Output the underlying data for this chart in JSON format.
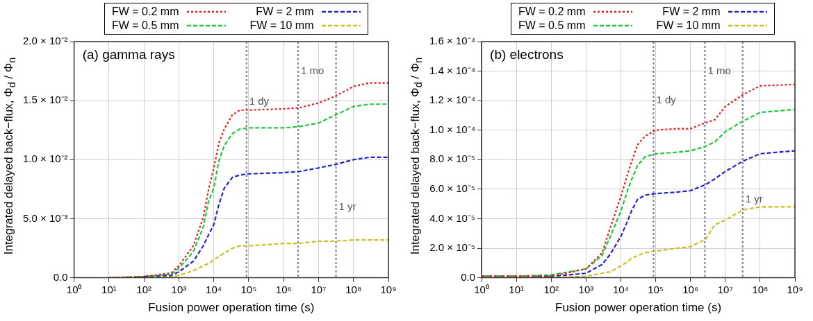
{
  "chart_data": [
    {
      "type": "line",
      "title": "(a) gamma rays",
      "xlabel": "Fusion power operation time (s)",
      "ylabel": "Integrated delayed back−flux, Φ$_{d}$ / Φ$_{n}$",
      "log": "x",
      "grid": true,
      "legend": "top",
      "marker": "none",
      "x": [
        10,
        100,
        600,
        1000,
        2600,
        5000,
        7000,
        10000,
        14000,
        20000,
        34000,
        56000,
        100000,
        1000000,
        2800000,
        10000000,
        31000000,
        100000000,
        280000000,
        1000000000
      ],
      "series": [
        {
          "name": "FW = 0.2 mm",
          "color": "#e31a1c",
          "line_style": "dotted",
          "values": [
            0,
            0.0001,
            0.0004,
            0.001,
            0.0027,
            0.0051,
            0.0074,
            0.0093,
            0.0114,
            0.0126,
            0.0138,
            0.0142,
            0.0142,
            0.0143,
            0.0144,
            0.0148,
            0.0154,
            0.0162,
            0.0165,
            0.0165
          ]
        },
        {
          "name": "FW = 0.5 mm",
          "color": "#1ec83a",
          "line_style": "dashed",
          "values": [
            0,
            0.0001,
            0.0003,
            0.0008,
            0.0022,
            0.0043,
            0.0064,
            0.0076,
            0.0099,
            0.0112,
            0.0122,
            0.0126,
            0.0127,
            0.0127,
            0.0128,
            0.0131,
            0.0138,
            0.0145,
            0.0147,
            0.0147
          ]
        },
        {
          "name": "FW = 2 mm",
          "color": "#2323c8",
          "line_style": "dashed",
          "values": [
            null,
            0.0001,
            0.0002,
            0.0005,
            0.0014,
            0.0027,
            0.0036,
            0.0045,
            0.0062,
            0.0076,
            0.0085,
            0.0087,
            0.0088,
            0.0089,
            0.009,
            0.0093,
            0.0096,
            0.01,
            0.0102,
            0.0102
          ]
        },
        {
          "name": "FW = 10 mm",
          "color": "#c8c024",
          "line_style": "dashed",
          "values": [
            null,
            0,
            0.0001,
            0.0002,
            0.0006,
            0.001,
            0.0012,
            0.0015,
            0.0018,
            0.0021,
            0.0025,
            0.0027,
            0.0027,
            0.0029,
            0.0029,
            0.0031,
            0.0031,
            0.0032,
            0.0032,
            0.0032
          ]
        }
      ],
      "xlim": [
        1,
        1000000000
      ],
      "xticks": [
        {
          "value": 1,
          "label": "10⁰"
        },
        {
          "value": 10,
          "label": "10¹"
        },
        {
          "value": 100,
          "label": "10²"
        },
        {
          "value": 1000,
          "label": "10³"
        },
        {
          "value": 10000,
          "label": "10⁴"
        },
        {
          "value": 100000,
          "label": "10⁵"
        },
        {
          "value": 1000000,
          "label": "10⁶"
        },
        {
          "value": 10000000,
          "label": "10⁷"
        },
        {
          "value": 100000000,
          "label": "10⁸"
        },
        {
          "value": 1000000000,
          "label": "10⁹"
        }
      ],
      "ylim": [
        0,
        0.02
      ],
      "yticks": [
        {
          "value": 0,
          "label": "0.0"
        },
        {
          "value": 0.005,
          "label": "5.0 × 10⁻³"
        },
        {
          "value": 0.01,
          "label": "1.0 × 10⁻²"
        },
        {
          "value": 0.015,
          "label": "1.5 × 10⁻²"
        },
        {
          "value": 0.02,
          "label": "2.0 × 10⁻²"
        }
      ],
      "ref_lines": [
        {
          "axis": "x",
          "value": 86400,
          "color": "#8a80a6",
          "line_style": "dotted"
        },
        {
          "axis": "x",
          "value": 2592000,
          "color": "#8a80a6",
          "line_style": "dotted"
        },
        {
          "axis": "x",
          "value": 31536000,
          "color": "#8a80a6",
          "line_style": "dotted"
        }
      ],
      "annotations": [
        {
          "text": "1 dy",
          "x": 86400,
          "y": 0.0149
        },
        {
          "text": "1 mo",
          "x": 2592000,
          "y": 0.0175
        },
        {
          "text": "1 yr",
          "x": 31536000,
          "y": 0.006
        }
      ]
    },
    {
      "type": "line",
      "title": "(b) electrons",
      "xlabel": "Fusion power operation time (s)",
      "ylabel": "Integrated delayed back−flux, Φ$_{d}$ / Φ$_{n}$",
      "log": "x",
      "grid": true,
      "legend": "top",
      "marker": "none",
      "x": [
        1,
        10,
        100,
        1000,
        2900,
        5000,
        10000,
        16000,
        20000,
        30000,
        50000,
        100000,
        400000,
        1000000,
        2700000,
        5000000,
        10000000,
        32000000,
        100000000,
        1000000000
      ],
      "series": [
        {
          "name": "FW = 0.2 mm",
          "color": "#e31a1c",
          "line_style": "dotted",
          "values": [
            1e-06,
            1e-06,
            1e-06,
            6e-06,
            1.7e-05,
            3.4e-05,
            5.5e-05,
            7.1e-05,
            7.8e-05,
            9e-05,
            9.6e-05,
            0.0001,
            0.000101,
            0.000101,
            0.000105,
            0.000107,
            0.000116,
            0.000124,
            0.00013,
            0.000131
          ]
        },
        {
          "name": "FW = 0.5 mm",
          "color": "#1ec83a",
          "line_style": "dashed",
          "values": [
            1e-06,
            1e-06,
            2e-06,
            6e-06,
            1.5e-05,
            2.8e-05,
            4.5e-05,
            6e-05,
            6.6e-05,
            7.6e-05,
            8.2e-05,
            8.4e-05,
            8.5e-05,
            8.6e-05,
            8.9e-05,
            9.2e-05,
            9.9e-05,
            0.000106,
            0.000112,
            0.000114
          ]
        },
        {
          "name": "FW = 2 mm",
          "color": "#2323c8",
          "line_style": "dashed",
          "values": [
            1e-06,
            1e-06,
            1e-06,
            3e-06,
            9e-06,
            1.6e-05,
            2.8e-05,
            3.9e-05,
            4.5e-05,
            5.3e-05,
            5.6e-05,
            5.7e-05,
            5.8e-05,
            5.9e-05,
            6.3e-05,
            6.7e-05,
            7.2e-05,
            7.9e-05,
            8.4e-05,
            8.6e-05
          ]
        },
        {
          "name": "FW = 10 mm",
          "color": "#c8c024",
          "line_style": "dashed",
          "values": [
            0,
            0,
            0,
            1e-06,
            3e-06,
            4e-06,
            8e-06,
            1.1e-05,
            1.3e-05,
            1.5e-05,
            1.7e-05,
            1.8e-05,
            2e-05,
            2.1e-05,
            2.6e-05,
            3.6e-05,
            3.9e-05,
            4.6e-05,
            4.8e-05,
            4.8e-05
          ]
        }
      ],
      "xlim": [
        1,
        1000000000
      ],
      "xticks": [
        {
          "value": 1,
          "label": "10⁰"
        },
        {
          "value": 10,
          "label": "10¹"
        },
        {
          "value": 100,
          "label": "10²"
        },
        {
          "value": 1000,
          "label": "10³"
        },
        {
          "value": 10000,
          "label": "10⁴"
        },
        {
          "value": 100000,
          "label": "10⁵"
        },
        {
          "value": 1000000,
          "label": "10⁶"
        },
        {
          "value": 10000000,
          "label": "10⁷"
        },
        {
          "value": 100000000,
          "label": "10⁸"
        },
        {
          "value": 1000000000,
          "label": "10⁹"
        }
      ],
      "ylim": [
        0,
        0.00016
      ],
      "yticks": [
        {
          "value": 0,
          "label": "0.0"
        },
        {
          "value": 2e-05,
          "label": "2.0 × 10⁻⁵"
        },
        {
          "value": 4e-05,
          "label": "4.0 × 10⁻⁵"
        },
        {
          "value": 6e-05,
          "label": "6.0 × 10⁻⁵"
        },
        {
          "value": 8e-05,
          "label": "8.0 × 10⁻⁵"
        },
        {
          "value": 0.0001,
          "label": "1.0 × 10⁻⁴"
        },
        {
          "value": 0.00012,
          "label": "1.2 × 10⁻⁴"
        },
        {
          "value": 0.00014,
          "label": "1.4 × 10⁻⁴"
        },
        {
          "value": 0.00016,
          "label": "1.6 × 10⁻⁴"
        }
      ],
      "ref_lines": [
        {
          "axis": "x",
          "value": 86400,
          "color": "#8a80a6",
          "line_style": "dotted"
        },
        {
          "axis": "x",
          "value": 2592000,
          "color": "#8a80a6",
          "line_style": "dotted"
        },
        {
          "axis": "x",
          "value": 31536000,
          "color": "#8a80a6",
          "line_style": "dotted"
        }
      ],
      "annotations": [
        {
          "text": "1 dy",
          "x": 86400,
          "y": 0.00012
        },
        {
          "text": "1 mo",
          "x": 2592000,
          "y": 0.00014
        },
        {
          "text": "1 yr",
          "x": 31536000,
          "y": 5.3e-05
        }
      ]
    }
  ]
}
